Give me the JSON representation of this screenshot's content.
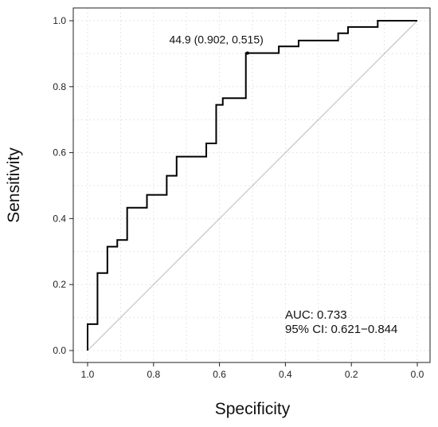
{
  "chart_data": {
    "type": "line",
    "xlabel": "Specificity",
    "ylabel": "Sensitivity",
    "x_reversed": true,
    "xlim": [
      1.0,
      0.0
    ],
    "ylim": [
      0.0,
      1.0
    ],
    "x_ticks": [
      "1.0",
      "0.8",
      "0.6",
      "0.4",
      "0.2",
      "0.0"
    ],
    "x_tick_values": [
      1.0,
      0.8,
      0.6,
      0.4,
      0.2,
      0.0
    ],
    "y_ticks": [
      "0.0",
      "0.2",
      "0.4",
      "0.6",
      "0.8",
      "1.0"
    ],
    "y_tick_values": [
      0.0,
      0.2,
      0.4,
      0.6,
      0.8,
      1.0
    ],
    "grid": true,
    "line_color": "#000000",
    "diagonal_color": "#bbbbbb",
    "grid_color": "#e6e6e6",
    "series": [
      {
        "specificity": [
          1.0,
          1.0,
          0.97,
          0.97,
          0.94,
          0.94,
          0.91,
          0.91,
          0.88,
          0.88,
          0.82,
          0.82,
          0.76,
          0.76,
          0.73,
          0.73,
          0.64,
          0.64,
          0.61,
          0.61,
          0.59,
          0.59,
          0.52,
          0.52,
          0.51,
          0.51,
          0.42,
          0.42,
          0.36,
          0.36,
          0.24,
          0.24,
          0.21,
          0.21,
          0.12,
          0.12,
          0.0
        ],
        "sensitivity": [
          0.0,
          0.08,
          0.08,
          0.235,
          0.235,
          0.315,
          0.315,
          0.335,
          0.335,
          0.433,
          0.433,
          0.472,
          0.472,
          0.53,
          0.53,
          0.588,
          0.588,
          0.628,
          0.628,
          0.745,
          0.745,
          0.765,
          0.765,
          0.902,
          0.902,
          0.902,
          0.902,
          0.922,
          0.922,
          0.94,
          0.94,
          0.962,
          0.962,
          0.981,
          0.981,
          1.0,
          1.0
        ]
      }
    ],
    "threshold_point": {
      "specificity": 0.515,
      "sensitivity": 0.902,
      "label": "44.9 (0.902, 0.515)"
    },
    "annotations": {
      "auc": "AUC: 0.733",
      "ci": "95% CI: 0.621−0.844"
    }
  }
}
